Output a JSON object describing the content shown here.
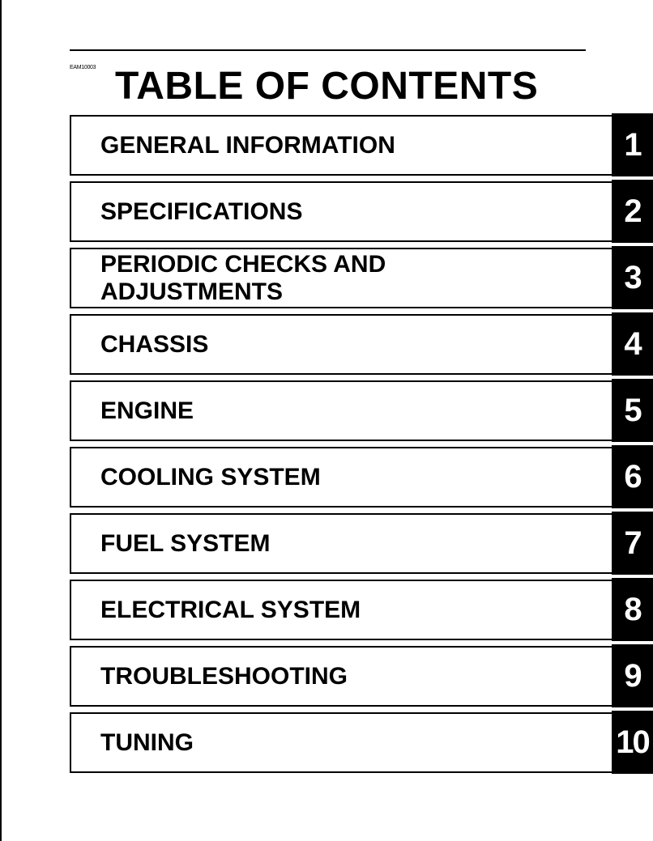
{
  "document_code": "EAM10003",
  "title": "TABLE OF CONTENTS",
  "sections": [
    {
      "label": "GENERAL INFORMATION",
      "number": "1"
    },
    {
      "label": "SPECIFICATIONS",
      "number": "2"
    },
    {
      "label": "PERIODIC CHECKS AND ADJUSTMENTS",
      "number": "3"
    },
    {
      "label": "CHASSIS",
      "number": "4"
    },
    {
      "label": "ENGINE",
      "number": "5"
    },
    {
      "label": "COOLING SYSTEM",
      "number": "6"
    },
    {
      "label": "FUEL SYSTEM",
      "number": "7"
    },
    {
      "label": "ELECTRICAL SYSTEM",
      "number": "8"
    },
    {
      "label": "TROUBLESHOOTING",
      "number": "9"
    },
    {
      "label": "TUNING",
      "number": "10"
    }
  ]
}
